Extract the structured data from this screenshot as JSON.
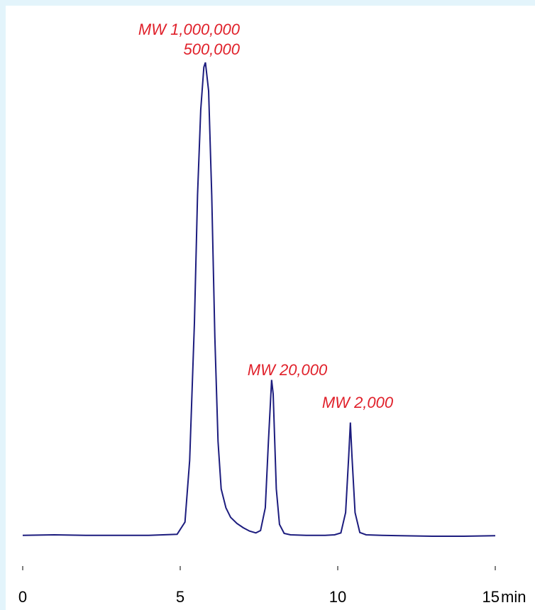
{
  "chart_data": {
    "type": "line",
    "title": "",
    "xlabel": "",
    "ylabel": "",
    "x_unit": "min",
    "xlim": [
      0,
      15
    ],
    "ylim": [
      0,
      1
    ],
    "x_ticks": [
      0,
      5,
      10,
      15
    ],
    "grid": false,
    "trace_color": "#1c1c7e",
    "label_color": "#e0202a",
    "series": [
      {
        "x": [
          0.0,
          1.0,
          2.0,
          3.0,
          4.0,
          4.9,
          5.15,
          5.3,
          5.45,
          5.55,
          5.65,
          5.75,
          5.8,
          5.9,
          6.0,
          6.1,
          6.2,
          6.3,
          6.45,
          6.6,
          6.8,
          7.0,
          7.2,
          7.4,
          7.55,
          7.7,
          7.8,
          7.9,
          7.95,
          8.0,
          8.05,
          8.15,
          8.3,
          8.5,
          9.0,
          9.6,
          9.9,
          10.1,
          10.25,
          10.35,
          10.4,
          10.45,
          10.55,
          10.7,
          10.9,
          11.4,
          12.0,
          13.0,
          14.0,
          15.0
        ],
        "y": [
          0.002,
          0.003,
          0.002,
          0.002,
          0.002,
          0.004,
          0.03,
          0.16,
          0.45,
          0.72,
          0.9,
          0.99,
          1.0,
          0.94,
          0.72,
          0.42,
          0.2,
          0.1,
          0.06,
          0.04,
          0.027,
          0.018,
          0.011,
          0.007,
          0.012,
          0.06,
          0.2,
          0.33,
          0.3,
          0.2,
          0.1,
          0.025,
          0.006,
          0.003,
          0.002,
          0.002,
          0.003,
          0.007,
          0.05,
          0.17,
          0.24,
          0.17,
          0.05,
          0.008,
          0.003,
          0.002,
          0.001,
          0.0,
          0.0,
          0.001
        ]
      }
    ],
    "annotations": [
      {
        "text": "MW 1,000,000",
        "x": 5.8
      },
      {
        "text": "500,000",
        "x": 5.8
      },
      {
        "text": "MW 20,000",
        "x": 7.95
      },
      {
        "text": "MW 2,000",
        "x": 10.4
      }
    ]
  }
}
